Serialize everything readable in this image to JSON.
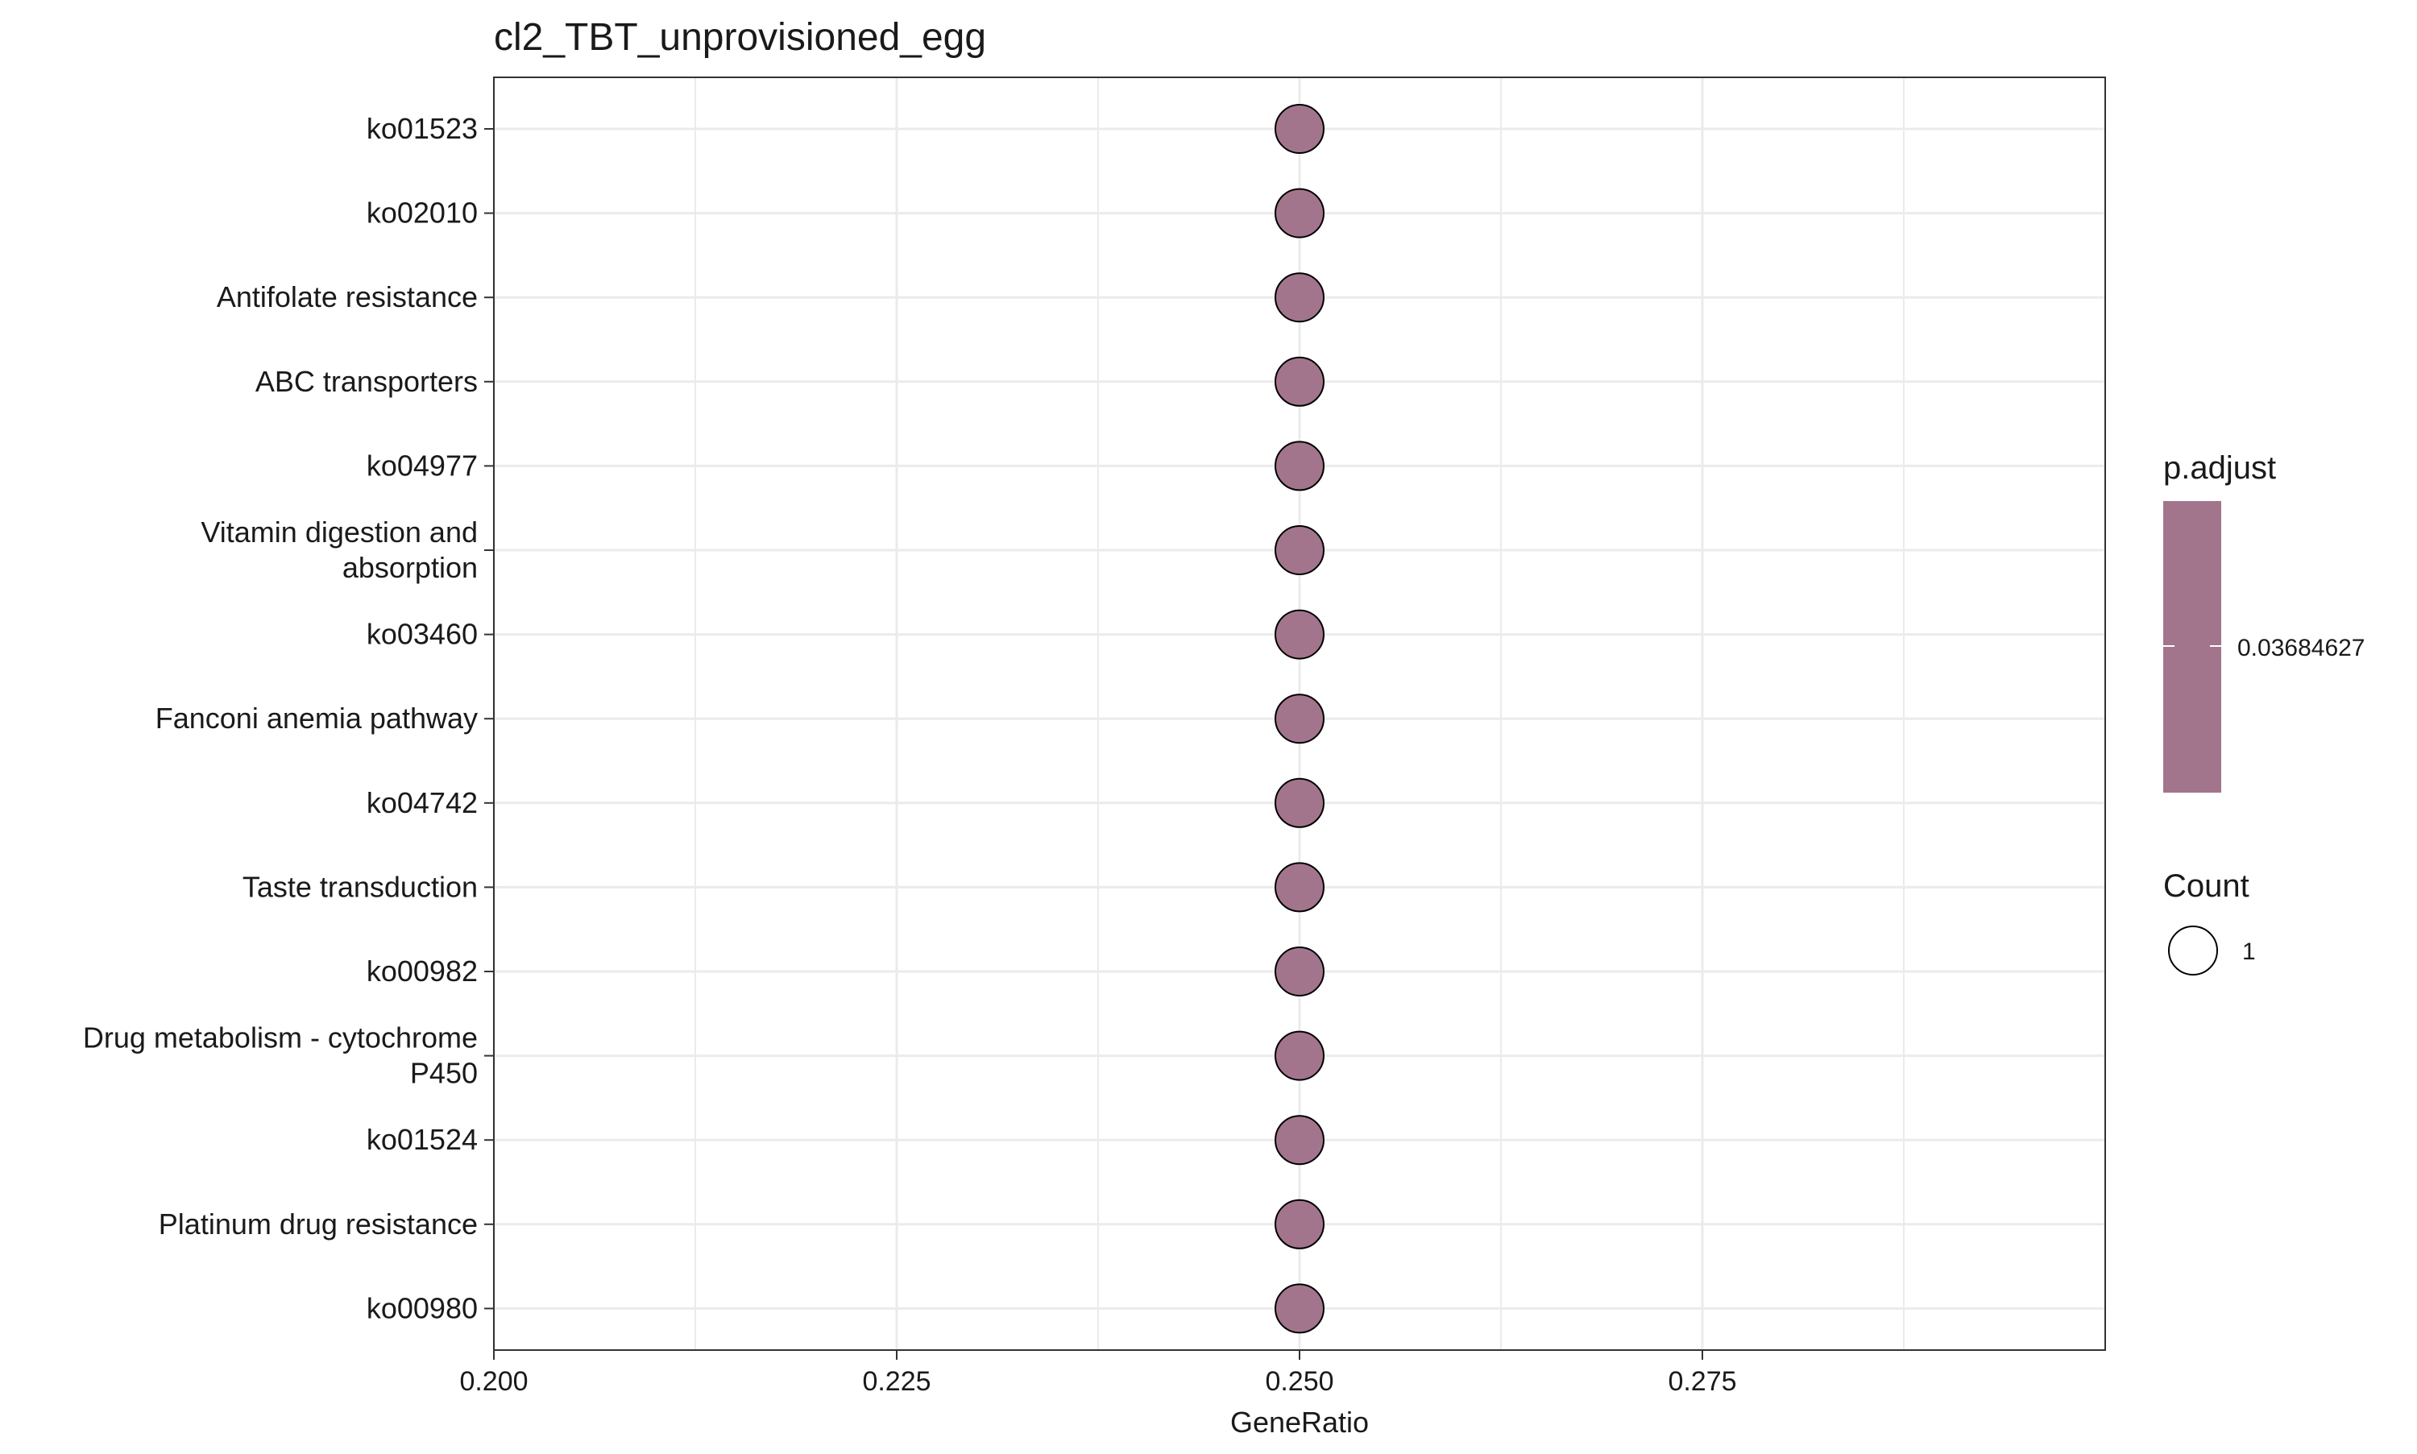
{
  "chart_data": {
    "type": "scatter",
    "title": "cl2_TBT_unprovisioned_egg",
    "xlabel": "GeneRatio",
    "ylabel": "",
    "xlim": [
      0.2,
      0.3
    ],
    "x_ticks": [
      0.2,
      0.225,
      0.25,
      0.275
    ],
    "x_tick_labels": [
      "0.200",
      "0.225",
      "0.250",
      "0.275"
    ],
    "grid": true,
    "categories": [
      "ko01523",
      "ko02010",
      "Antifolate resistance",
      "ABC transporters",
      "ko04977",
      "Vitamin digestion and\nabsorption",
      "ko03460",
      "Fanconi anemia pathway",
      "ko04742",
      "Taste transduction",
      "ko00982",
      "Drug metabolism - cytochrome\nP450",
      "ko01524",
      "Platinum drug resistance",
      "ko00980"
    ],
    "points": [
      {
        "category": "ko01523",
        "x": 0.25,
        "count": 1,
        "p_adjust": 0.03684627
      },
      {
        "category": "ko02010",
        "x": 0.25,
        "count": 1,
        "p_adjust": 0.03684627
      },
      {
        "category": "Antifolate resistance",
        "x": 0.25,
        "count": 1,
        "p_adjust": 0.03684627
      },
      {
        "category": "ABC transporters",
        "x": 0.25,
        "count": 1,
        "p_adjust": 0.03684627
      },
      {
        "category": "ko04977",
        "x": 0.25,
        "count": 1,
        "p_adjust": 0.03684627
      },
      {
        "category": "Vitamin digestion and\nabsorption",
        "x": 0.25,
        "count": 1,
        "p_adjust": 0.03684627
      },
      {
        "category": "ko03460",
        "x": 0.25,
        "count": 1,
        "p_adjust": 0.03684627
      },
      {
        "category": "Fanconi anemia pathway",
        "x": 0.25,
        "count": 1,
        "p_adjust": 0.03684627
      },
      {
        "category": "ko04742",
        "x": 0.25,
        "count": 1,
        "p_adjust": 0.03684627
      },
      {
        "category": "Taste transduction",
        "x": 0.25,
        "count": 1,
        "p_adjust": 0.03684627
      },
      {
        "category": "ko00982",
        "x": 0.25,
        "count": 1,
        "p_adjust": 0.03684627
      },
      {
        "category": "Drug metabolism - cytochrome\nP450",
        "x": 0.25,
        "count": 1,
        "p_adjust": 0.03684627
      },
      {
        "category": "ko01524",
        "x": 0.25,
        "count": 1,
        "p_adjust": 0.03684627
      },
      {
        "category": "Platinum drug resistance",
        "x": 0.25,
        "count": 1,
        "p_adjust": 0.03684627
      },
      {
        "category": "ko00980",
        "x": 0.25,
        "count": 1,
        "p_adjust": 0.03684627
      }
    ],
    "point_color": "#a3758d",
    "legend": {
      "placement": "right",
      "color": {
        "title": "p.adjust",
        "labels": [
          "0.03684627"
        ],
        "color": "#a3758d"
      },
      "size": {
        "title": "Count",
        "labels": [
          "1"
        ]
      }
    }
  }
}
